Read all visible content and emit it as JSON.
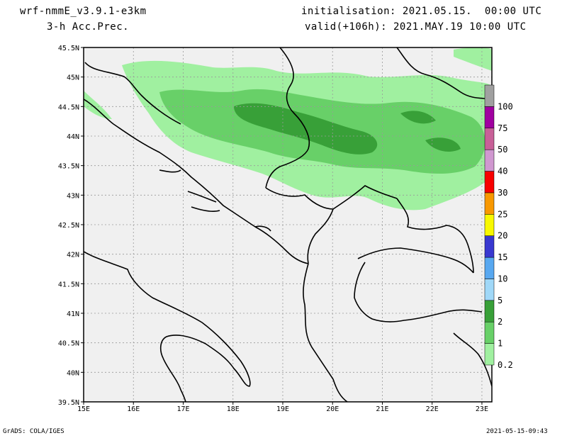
{
  "header": {
    "model": "wrf-nmmE_v3.9.1-e3km",
    "field": "3-h Acc.Prec.",
    "init": "initialisation: 2021.05.15.  00:00 UTC",
    "valid": "valid(+106h): 2021.MAY.19 10:00 UTC"
  },
  "footer": {
    "left": "GrADS: COLA/IGES",
    "right": "2021-05-15-09:43"
  },
  "map": {
    "lon_range": [
      15,
      23.2
    ],
    "lat_range": [
      39.5,
      45.5
    ],
    "lon_ticks": [
      "15E",
      "16E",
      "17E",
      "18E",
      "19E",
      "20E",
      "21E",
      "22E",
      "23E"
    ],
    "lat_ticks": [
      "39.5N",
      "40N",
      "40.5N",
      "41N",
      "41.5N",
      "42N",
      "42.5N",
      "43N",
      "43.5N",
      "44N",
      "44.5N",
      "45N",
      "45.5N"
    ],
    "grid": true,
    "background_color": "#f0f0f0"
  },
  "colorbar": {
    "levels": [
      "0.2",
      "1",
      "2",
      "5",
      "10",
      "15",
      "20",
      "25",
      "30",
      "40",
      "50",
      "75",
      "100"
    ],
    "colors": [
      "#a0f0a0",
      "#68d068",
      "#38a038",
      "#a0d8f8",
      "#58a8f0",
      "#3838d0",
      "#f8f800",
      "#f89800",
      "#f80000",
      "#d098d0",
      "#c86098",
      "#a000a0",
      "#a0a0a0"
    ]
  }
}
